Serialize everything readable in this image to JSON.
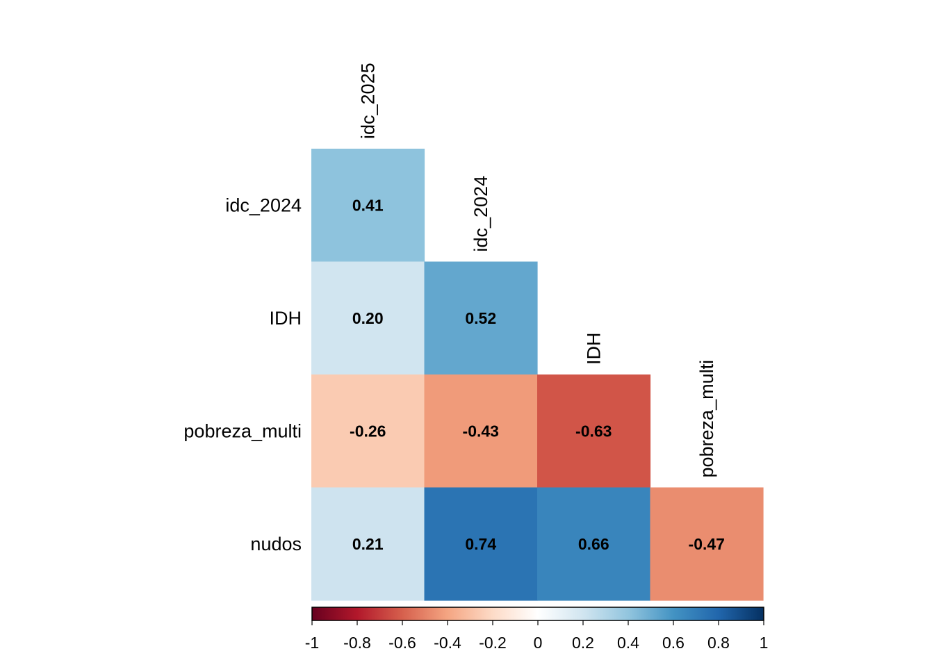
{
  "chart_data": {
    "type": "heatmap",
    "variables": [
      "idc_2025",
      "idc_2024",
      "IDH",
      "pobreza_multi",
      "nudos"
    ],
    "row_labels": [
      "idc_2024",
      "IDH",
      "pobreza_multi",
      "nudos"
    ],
    "column_labels": [
      "idc_2025",
      "idc_2024",
      "IDH",
      "pobreza_multi"
    ],
    "matrix": [
      [
        0.41
      ],
      [
        0.2,
        0.52
      ],
      [
        -0.26,
        -0.43,
        -0.63
      ],
      [
        0.21,
        0.74,
        0.66,
        -0.47
      ]
    ],
    "cell_labels": [
      [
        "0.41"
      ],
      [
        "0.20",
        "0.52"
      ],
      [
        "-0.26",
        "-0.43",
        "-0.63"
      ],
      [
        "0.21",
        "0.74",
        "0.66",
        "-0.47"
      ]
    ],
    "colorbar": {
      "range": [
        -1,
        1
      ],
      "ticks": [
        "-1",
        "-0.8",
        "-0.6",
        "-0.4",
        "-0.2",
        "0",
        "0.2",
        "0.4",
        "0.6",
        "0.8",
        "1"
      ],
      "palette": [
        "#67001F",
        "#B2182B",
        "#D6604D",
        "#F4A582",
        "#FDDBC7",
        "#FFFFFF",
        "#D1E5F0",
        "#92C5DE",
        "#4393C3",
        "#2166AC",
        "#053061"
      ]
    }
  }
}
